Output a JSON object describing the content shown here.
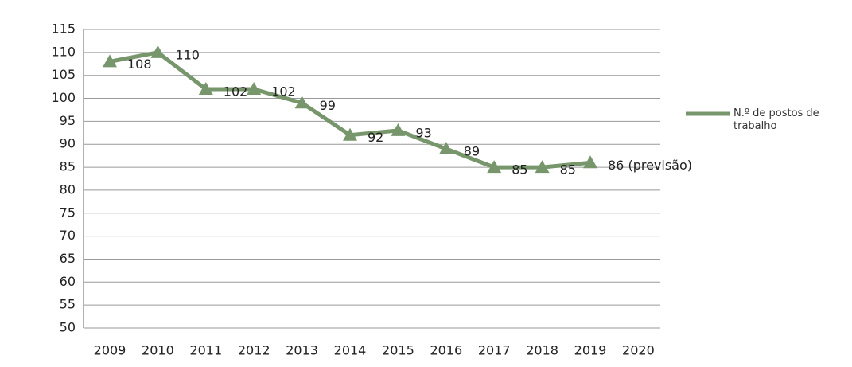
{
  "chart_data": {
    "type": "line",
    "categories": [
      "2009",
      "2010",
      "2011",
      "2012",
      "2013",
      "2014",
      "2015",
      "2016",
      "2017",
      "2018",
      "2019",
      "2020"
    ],
    "series": [
      {
        "name": "N.º de postos de trabalho",
        "color": "#77966b",
        "values": [
          108,
          110,
          102,
          102,
          99,
          92,
          93,
          89,
          85,
          85,
          86,
          null
        ],
        "value_labels": [
          "108",
          "110",
          "102",
          "102",
          "99",
          "92",
          "93",
          "89",
          "85",
          "85",
          "86 (previsão)",
          null
        ]
      }
    ],
    "ylim": [
      50,
      115
    ],
    "yticks": [
      50,
      55,
      60,
      65,
      70,
      75,
      80,
      85,
      90,
      95,
      100,
      105,
      110,
      115
    ],
    "grid": true,
    "legend": "right"
  }
}
